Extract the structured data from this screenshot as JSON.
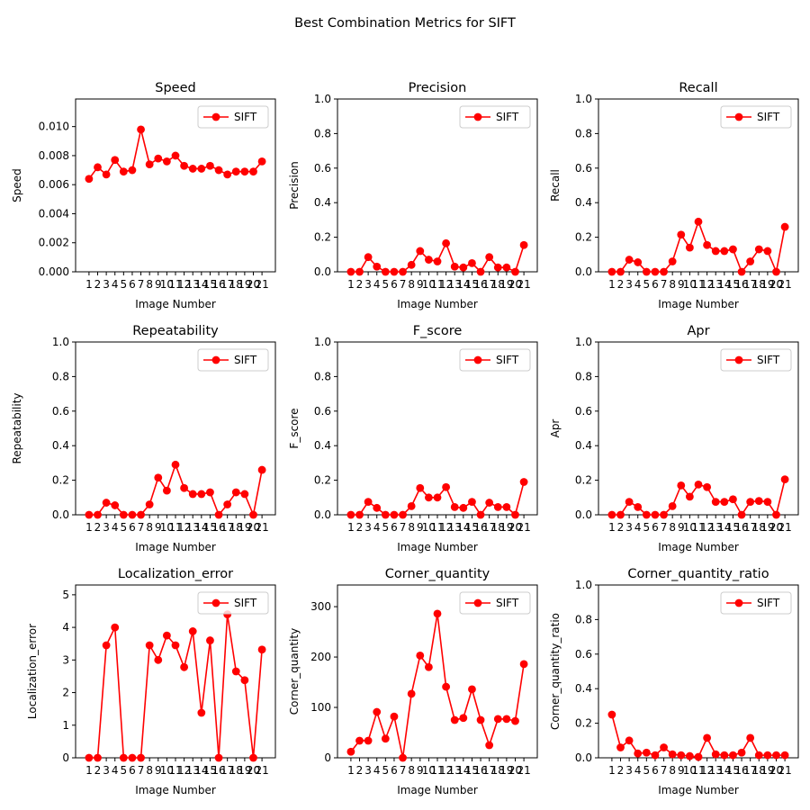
{
  "figure": {
    "suptitle": "Best Combination Metrics for SIFT"
  },
  "chart_data": [
    {
      "type": "line",
      "title": "Speed",
      "xlabel": "Image Number",
      "ylabel": "Speed",
      "legend_position": "top-right",
      "grid": false,
      "color": "#ff0000",
      "categories": [
        "1",
        "2",
        "3",
        "4",
        "5",
        "6",
        "7",
        "8",
        "9",
        "10",
        "11",
        "12",
        "13",
        "14",
        "15",
        "16",
        "17",
        "18",
        "19",
        "20",
        "21"
      ],
      "ylim": [
        0,
        0.0119
      ],
      "yticks": [
        0,
        0.002,
        0.004,
        0.006,
        0.008,
        0.01
      ],
      "ytick_labels": [
        "0.000",
        "0.002",
        "0.004",
        "0.006",
        "0.008",
        "0.010"
      ],
      "series": [
        {
          "name": "SIFT",
          "values": [
            0.0064,
            0.0072,
            0.0067,
            0.0077,
            0.0069,
            0.007,
            0.0098,
            0.0074,
            0.0078,
            0.0076,
            0.008,
            0.0073,
            0.0071,
            0.0071,
            0.0073,
            0.007,
            0.0067,
            0.0069,
            0.0069,
            0.0069,
            0.0076
          ]
        }
      ]
    },
    {
      "type": "line",
      "title": "Precision",
      "xlabel": "Image Number",
      "ylabel": "Precision",
      "legend_position": "top-right",
      "grid": false,
      "color": "#ff0000",
      "categories": [
        "1",
        "2",
        "3",
        "4",
        "5",
        "6",
        "7",
        "8",
        "9",
        "10",
        "11",
        "12",
        "13",
        "14",
        "15",
        "16",
        "17",
        "18",
        "19",
        "20",
        "21"
      ],
      "ylim": [
        0,
        1
      ],
      "yticks": [
        0,
        0.2,
        0.4,
        0.6,
        0.8,
        1.0
      ],
      "ytick_labels": [
        "0.0",
        "0.2",
        "0.4",
        "0.6",
        "0.8",
        "1.0"
      ],
      "series": [
        {
          "name": "SIFT",
          "values": [
            0,
            0,
            0.085,
            0.03,
            0,
            0,
            0,
            0.04,
            0.12,
            0.07,
            0.06,
            0.165,
            0.03,
            0.025,
            0.05,
            0,
            0.085,
            0.025,
            0.025,
            0,
            0.155
          ]
        }
      ]
    },
    {
      "type": "line",
      "title": "Recall",
      "xlabel": "Image Number",
      "ylabel": "Recall",
      "legend_position": "top-right",
      "grid": false,
      "color": "#ff0000",
      "categories": [
        "1",
        "2",
        "3",
        "4",
        "5",
        "6",
        "7",
        "8",
        "9",
        "10",
        "11",
        "12",
        "13",
        "14",
        "15",
        "16",
        "17",
        "18",
        "19",
        "20",
        "21"
      ],
      "ylim": [
        0,
        1
      ],
      "yticks": [
        0,
        0.2,
        0.4,
        0.6,
        0.8,
        1.0
      ],
      "ytick_labels": [
        "0.0",
        "0.2",
        "0.4",
        "0.6",
        "0.8",
        "1.0"
      ],
      "series": [
        {
          "name": "SIFT",
          "values": [
            0,
            0,
            0.07,
            0.055,
            0,
            0,
            0,
            0.06,
            0.215,
            0.14,
            0.29,
            0.155,
            0.12,
            0.12,
            0.13,
            0,
            0.06,
            0.13,
            0.12,
            0,
            0.26
          ]
        }
      ]
    },
    {
      "type": "line",
      "title": "Repeatability",
      "xlabel": "Image Number",
      "ylabel": "Repeatability",
      "legend_position": "top-right",
      "grid": false,
      "color": "#ff0000",
      "categories": [
        "1",
        "2",
        "3",
        "4",
        "5",
        "6",
        "7",
        "8",
        "9",
        "10",
        "11",
        "12",
        "13",
        "14",
        "15",
        "16",
        "17",
        "18",
        "19",
        "20",
        "21"
      ],
      "ylim": [
        0,
        1
      ],
      "yticks": [
        0,
        0.2,
        0.4,
        0.6,
        0.8,
        1.0
      ],
      "ytick_labels": [
        "0.0",
        "0.2",
        "0.4",
        "0.6",
        "0.8",
        "1.0"
      ],
      "series": [
        {
          "name": "SIFT",
          "values": [
            0,
            0,
            0.07,
            0.055,
            0,
            0,
            0,
            0.06,
            0.215,
            0.14,
            0.29,
            0.155,
            0.12,
            0.12,
            0.13,
            0,
            0.06,
            0.13,
            0.12,
            0,
            0.26
          ]
        }
      ]
    },
    {
      "type": "line",
      "title": "F_score",
      "xlabel": "Image Number",
      "ylabel": "F_score",
      "legend_position": "top-right",
      "grid": false,
      "color": "#ff0000",
      "categories": [
        "1",
        "2",
        "3",
        "4",
        "5",
        "6",
        "7",
        "8",
        "9",
        "10",
        "11",
        "12",
        "13",
        "14",
        "15",
        "16",
        "17",
        "18",
        "19",
        "20",
        "21"
      ],
      "ylim": [
        0,
        1
      ],
      "yticks": [
        0,
        0.2,
        0.4,
        0.6,
        0.8,
        1.0
      ],
      "ytick_labels": [
        "0.0",
        "0.2",
        "0.4",
        "0.6",
        "0.8",
        "1.0"
      ],
      "series": [
        {
          "name": "SIFT",
          "values": [
            0,
            0,
            0.075,
            0.04,
            0,
            0,
            0,
            0.05,
            0.155,
            0.1,
            0.1,
            0.16,
            0.045,
            0.04,
            0.075,
            0,
            0.07,
            0.045,
            0.045,
            0,
            0.19
          ]
        }
      ]
    },
    {
      "type": "line",
      "title": "Apr",
      "xlabel": "Image Number",
      "ylabel": "Apr",
      "legend_position": "top-right",
      "grid": false,
      "color": "#ff0000",
      "categories": [
        "1",
        "2",
        "3",
        "4",
        "5",
        "6",
        "7",
        "8",
        "9",
        "10",
        "11",
        "12",
        "13",
        "14",
        "15",
        "16",
        "17",
        "18",
        "19",
        "20",
        "21"
      ],
      "ylim": [
        0,
        1
      ],
      "yticks": [
        0,
        0.2,
        0.4,
        0.6,
        0.8,
        1.0
      ],
      "ytick_labels": [
        "0.0",
        "0.2",
        "0.4",
        "0.6",
        "0.8",
        "1.0"
      ],
      "series": [
        {
          "name": "SIFT",
          "values": [
            0,
            0,
            0.075,
            0.045,
            0,
            0,
            0,
            0.05,
            0.17,
            0.105,
            0.175,
            0.16,
            0.075,
            0.075,
            0.09,
            0,
            0.075,
            0.08,
            0.075,
            0,
            0.205
          ]
        }
      ]
    },
    {
      "type": "line",
      "title": "Localization_error",
      "xlabel": "Image Number",
      "ylabel": "Localization_error",
      "legend_position": "top-right",
      "grid": false,
      "color": "#ff0000",
      "categories": [
        "1",
        "2",
        "3",
        "4",
        "5",
        "6",
        "7",
        "8",
        "9",
        "10",
        "11",
        "12",
        "13",
        "14",
        "15",
        "16",
        "17",
        "18",
        "19",
        "20",
        "21"
      ],
      "ylim": [
        0,
        5.3
      ],
      "yticks": [
        0,
        1,
        2,
        3,
        4,
        5
      ],
      "ytick_labels": [
        "0",
        "1",
        "2",
        "3",
        "4",
        "5"
      ],
      "series": [
        {
          "name": "SIFT",
          "values": [
            0,
            0,
            3.45,
            4.0,
            0,
            0,
            0,
            3.45,
            3.0,
            3.75,
            3.45,
            2.78,
            3.88,
            1.38,
            3.6,
            0,
            4.4,
            2.65,
            2.38,
            0,
            3.32
          ]
        }
      ]
    },
    {
      "type": "line",
      "title": "Corner_quantity",
      "xlabel": "Image Number",
      "ylabel": "Corner_quantity",
      "legend_position": "top-right",
      "grid": false,
      "color": "#ff0000",
      "categories": [
        "1",
        "2",
        "3",
        "4",
        "5",
        "6",
        "7",
        "8",
        "9",
        "10",
        "11",
        "12",
        "13",
        "14",
        "15",
        "16",
        "17",
        "18",
        "19",
        "20",
        "21"
      ],
      "ylim": [
        0,
        343
      ],
      "yticks": [
        0,
        100,
        200,
        300
      ],
      "ytick_labels": [
        "0",
        "100",
        "200",
        "300"
      ],
      "series": [
        {
          "name": "SIFT",
          "values": [
            12,
            34,
            34,
            91,
            38,
            82,
            0,
            127,
            203,
            180,
            286,
            141,
            75,
            79,
            136,
            75,
            25,
            77,
            77,
            73,
            186
          ]
        }
      ]
    },
    {
      "type": "line",
      "title": "Corner_quantity_ratio",
      "xlabel": "Image Number",
      "ylabel": "Corner_quantity_ratio",
      "legend_position": "top-right",
      "grid": false,
      "color": "#ff0000",
      "categories": [
        "1",
        "2",
        "3",
        "4",
        "5",
        "6",
        "7",
        "8",
        "9",
        "10",
        "11",
        "12",
        "13",
        "14",
        "15",
        "16",
        "17",
        "18",
        "19",
        "20",
        "21"
      ],
      "ylim": [
        0,
        1
      ],
      "yticks": [
        0,
        0.2,
        0.4,
        0.6,
        0.8,
        1.0
      ],
      "ytick_labels": [
        "0.0",
        "0.2",
        "0.4",
        "0.6",
        "0.8",
        "1.0"
      ],
      "series": [
        {
          "name": "SIFT",
          "values": [
            0.25,
            0.06,
            0.1,
            0.025,
            0.03,
            0.015,
            0.06,
            0.02,
            0.015,
            0.01,
            0.005,
            0.115,
            0.02,
            0.015,
            0.015,
            0.03,
            0.115,
            0.015,
            0.015,
            0.015,
            0.015
          ]
        }
      ]
    }
  ]
}
